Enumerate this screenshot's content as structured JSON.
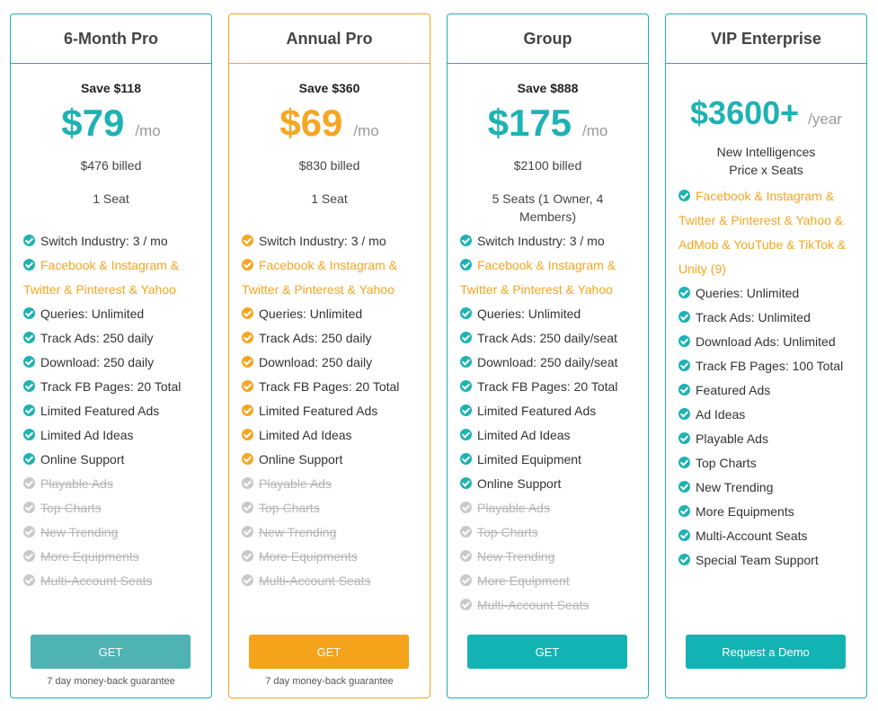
{
  "colors": {
    "teal": "#1fb2b2",
    "orange": "#f5a623",
    "disabled": "#c9c9c9"
  },
  "icons": {
    "check": "check-circle-icon"
  },
  "plans": [
    {
      "title": "6-Month Pro",
      "save": "Save $118",
      "price": "$79",
      "per": "/mo",
      "billed": "$476 billed",
      "seats": "1 Seat",
      "features": [
        {
          "text": "Switch Industry: 3 / mo",
          "state": "on"
        },
        {
          "text": "Facebook & Instagram &",
          "state": "hl"
        },
        {
          "text": "Twitter & Pinterest & Yahoo",
          "state": "hl-cont"
        },
        {
          "text": "Queries: Unlimited",
          "state": "on"
        },
        {
          "text": "Track Ads: 250 daily",
          "state": "on"
        },
        {
          "text": "Download: 250 daily",
          "state": "on"
        },
        {
          "text": "Track FB Pages: 20 Total",
          "state": "on"
        },
        {
          "text": "Limited Featured Ads",
          "state": "on"
        },
        {
          "text": "Limited Ad Ideas",
          "state": "on"
        },
        {
          "text": "Online Support",
          "state": "on"
        },
        {
          "text": "Playable Ads",
          "state": "off"
        },
        {
          "text": "Top Charts",
          "state": "off"
        },
        {
          "text": "New Trending",
          "state": "off"
        },
        {
          "text": "More Equipments",
          "state": "off"
        },
        {
          "text": "Multi-Account Seats",
          "state": "off"
        }
      ],
      "button": "GET",
      "guarantee": "7 day money-back guarantee"
    },
    {
      "title": "Annual Pro",
      "save": "Save $360",
      "price": "$69",
      "per": "/mo",
      "billed": "$830 billed",
      "seats": "1 Seat",
      "features": [
        {
          "text": "Switch Industry: 3 / mo",
          "state": "on"
        },
        {
          "text": "Facebook & Instagram &",
          "state": "hl"
        },
        {
          "text": "Twitter & Pinterest & Yahoo",
          "state": "hl-cont"
        },
        {
          "text": "Queries: Unlimited",
          "state": "on"
        },
        {
          "text": "Track Ads: 250 daily",
          "state": "on"
        },
        {
          "text": "Download: 250 daily",
          "state": "on"
        },
        {
          "text": "Track FB Pages: 20 Total",
          "state": "on"
        },
        {
          "text": "Limited Featured Ads",
          "state": "on"
        },
        {
          "text": "Limited Ad Ideas",
          "state": "on"
        },
        {
          "text": "Online Support",
          "state": "on"
        },
        {
          "text": "Playable Ads",
          "state": "off"
        },
        {
          "text": "Top Charts",
          "state": "off"
        },
        {
          "text": "New Trending",
          "state": "off"
        },
        {
          "text": "More Equipments",
          "state": "off"
        },
        {
          "text": "Multi-Account Seats",
          "state": "off"
        }
      ],
      "button": "GET",
      "guarantee": "7 day money-back guarantee"
    },
    {
      "title": "Group",
      "save": "Save $888",
      "price": "$175",
      "per": "/mo",
      "billed": "$2100 billed",
      "seats": "5 Seats (1 Owner, 4 Members)",
      "features": [
        {
          "text": "Switch Industry: 3 / mo",
          "state": "on"
        },
        {
          "text": "Facebook & Instagram &",
          "state": "hl"
        },
        {
          "text": "Twitter & Pinterest & Yahoo",
          "state": "hl-cont"
        },
        {
          "text": "Queries: Unlimited",
          "state": "on"
        },
        {
          "text": "Track Ads: 250 daily/seat",
          "state": "on"
        },
        {
          "text": "Download: 250 daily/seat",
          "state": "on"
        },
        {
          "text": "Track FB Pages: 20 Total",
          "state": "on"
        },
        {
          "text": "Limited Featured Ads",
          "state": "on"
        },
        {
          "text": "Limited Ad Ideas",
          "state": "on"
        },
        {
          "text": "Limited Equipment",
          "state": "on"
        },
        {
          "text": "Online Support",
          "state": "on"
        },
        {
          "text": "Playable Ads",
          "state": "off"
        },
        {
          "text": "Top Charts",
          "state": "off"
        },
        {
          "text": "New Trending",
          "state": "off"
        },
        {
          "text": "More Equipment",
          "state": "off"
        },
        {
          "text": "Multi-Account Seats",
          "state": "off"
        }
      ],
      "button": "GET"
    },
    {
      "title": "VIP Enterprise",
      "price": "$3600+",
      "per": "/year",
      "note_line1": "New Intelligences",
      "note_line2": "Price x Seats",
      "features": [
        {
          "text": "Facebook & Instagram &",
          "state": "hl"
        },
        {
          "text": "Twitter & Pinterest & Yahoo &",
          "state": "hl-cont"
        },
        {
          "text": "AdMob & YouTube & TikTok &",
          "state": "hl-cont"
        },
        {
          "text": "Unity (9)",
          "state": "hl-cont"
        },
        {
          "text": "Queries: Unlimited",
          "state": "on"
        },
        {
          "text": "Track Ads: Unlimited",
          "state": "on"
        },
        {
          "text": "Download Ads: Unlimited",
          "state": "on"
        },
        {
          "text": "Track FB Pages: 100 Total",
          "state": "on"
        },
        {
          "text": "Featured Ads",
          "state": "on"
        },
        {
          "text": "Ad Ideas",
          "state": "on"
        },
        {
          "text": "Playable Ads",
          "state": "on"
        },
        {
          "text": "Top Charts",
          "state": "on"
        },
        {
          "text": "New Trending",
          "state": "on"
        },
        {
          "text": "More Equipments",
          "state": "on"
        },
        {
          "text": "Multi-Account Seats",
          "state": "on"
        },
        {
          "text": "Special Team Support",
          "state": "on"
        }
      ],
      "button": "Request a Demo"
    }
  ]
}
